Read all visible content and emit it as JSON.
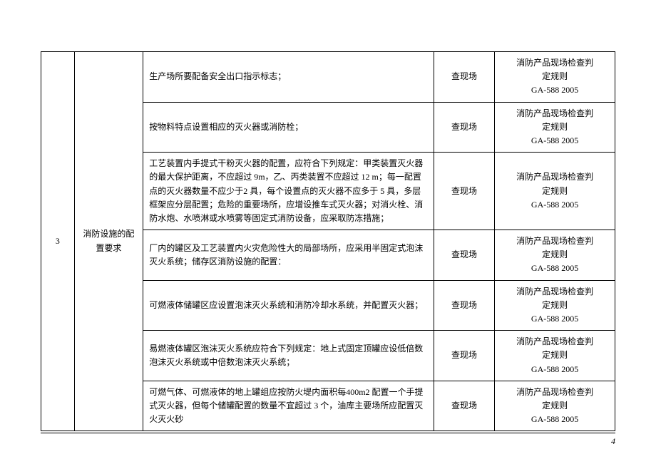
{
  "table": {
    "row_index": "3",
    "category": "消防设施的配置要求",
    "border_color": "#000000",
    "text_color": "#000000",
    "font_size": 12,
    "rows": [
      {
        "description": "生产场所要配备安全出口指示标志；",
        "method": "查现场",
        "reference_line1": "消防产品现场检查判",
        "reference_line2": "定规则",
        "reference_line3": "GA-588 2005"
      },
      {
        "description": "按物料特点设置相应的灭火器或消防栓；",
        "method": "查现场",
        "reference_line1": "消防产品现场检查判",
        "reference_line2": "定规则",
        "reference_line3": "GA-588 2005"
      },
      {
        "description": "工艺装置内手提式干粉灭火器的配置，应符合下列规定：甲类装置灭火器的最大保护距离，不应超过 9m，乙、丙类装置不应超过 12 m；每一配置点的灭火器数量不应少于2 具，每个设置点的灭火器不应多于 5 具，多层框架应分层配置；危险的重要场所，应增设推车式灭火器；对消火栓、消防水炮、水喷淋或水喷雾等固定式消防设备，应采取防冻措施；",
        "method": "查现场",
        "reference_line1": "消防产品现场检查判",
        "reference_line2": "定规则",
        "reference_line3": "GA-588 2005"
      },
      {
        "description": "厂内的罐区及工艺装置内火灾危险性大的局部场所，应采用半固定式泡沫灭火系统；储存区消防设施的配置：",
        "method": "查现场",
        "reference_line1": "消防产品现场检查判",
        "reference_line2": "定规则",
        "reference_line3": "GA-588 2005"
      },
      {
        "description": "可燃液体储罐区应设置泡沫灭火系统和消防冷却水系统，并配置灭火器；",
        "method": "查现场",
        "reference_line1": "消防产品现场检查判",
        "reference_line2": "定规则",
        "reference_line3": "GA-588 2005"
      },
      {
        "description": "易燃液体罐区泡沫灭火系统应符合下列规定：地上式固定顶罐应设低倍数泡沫灭火系统或中倍数泡沫灭火系统；",
        "method": "查现场",
        "reference_line1": "消防产品现场检查判",
        "reference_line2": "定规则",
        "reference_line3": "GA-588 2005"
      },
      {
        "description": "可燃气体、可燃液体的地上罐组应按防火堤内面积每400m2 配置一个手提式灭火器，但每个储罐配置的数量不宜超过 3 个，油库主要场所应配置灭火灭火砂",
        "method": "查现场",
        "reference_line1": "消防产品现场检查判",
        "reference_line2": "定规则",
        "reference_line3": "GA-588 2005"
      }
    ]
  },
  "footer": {
    "page_number": "4"
  }
}
